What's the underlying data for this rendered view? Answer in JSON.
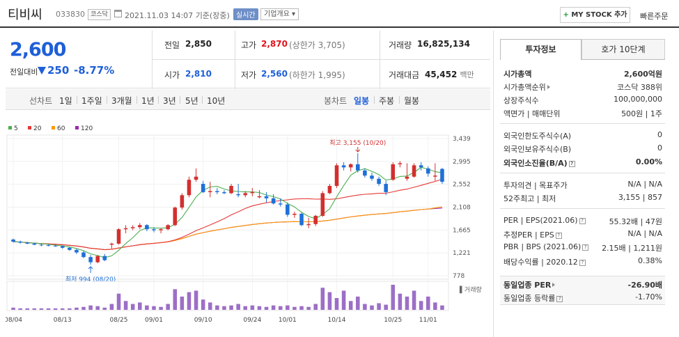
{
  "header": {
    "name": "티비씨",
    "code": "033830",
    "market": "코스닥",
    "datetime": "2021.11.03 14:07",
    "basis": "기준(장중)",
    "realtime": "실시간",
    "overview": "기업개요 ▾",
    "mystock": "MY STOCK 추가",
    "quick_order": "빠른주문"
  },
  "price": {
    "current": "2,600",
    "change_label": "전일대비",
    "change": "250",
    "change_pct": "-8.77%",
    "prev_label": "전일",
    "prev": "2,850",
    "high_label": "고가",
    "high": "2,870",
    "upper_limit": "(상한가 3,705)",
    "volume_label": "거래량",
    "volume": "16,825,134",
    "open_label": "시가",
    "open": "2,810",
    "low_label": "저가",
    "low": "2,560",
    "lower_limit": "(하한가 1,995)",
    "amount_label": "거래대금",
    "amount": "45,452",
    "amount_unit": "백만"
  },
  "periods": {
    "label": "선차트",
    "items": [
      "1일",
      "1주일",
      "3개월",
      "1년",
      "3년",
      "5년",
      "10년"
    ],
    "candle_label": "봉차트",
    "candle_items": [
      "일봉",
      "주봉",
      "월봉"
    ],
    "active_candle": "일봉"
  },
  "chart_data": {
    "type": "candlestick",
    "legend": [
      "5",
      "20",
      "60",
      "120"
    ],
    "legend_colors": [
      "#4caf50",
      "#e53935",
      "#ff9800",
      "#9c27b0"
    ],
    "y_ticks": [
      "3,439",
      "2,995",
      "2,552",
      "2,108",
      "1,665",
      "1,221",
      "778"
    ],
    "ylim": [
      778,
      3439
    ],
    "x_labels": [
      "08/04",
      "08/13",
      "08/25",
      "09/01",
      "09/10",
      "09/24",
      "10/01",
      "10/14",
      "10/25",
      "11/01"
    ],
    "x_label_index": [
      0,
      7,
      15,
      20,
      27,
      34,
      39,
      46,
      54,
      59
    ],
    "high_marker": "최고 3,155 (10/20)",
    "low_marker": "최저 994 (08/20)",
    "high_index": 49,
    "low_index": 11,
    "volume_label": "거래량",
    "up_color": "#d32f2f",
    "down_color": "#1e6fd8",
    "ohlc": [
      [
        1480,
        1500,
        1420,
        1440
      ],
      [
        1440,
        1460,
        1400,
        1420
      ],
      [
        1420,
        1440,
        1390,
        1400
      ],
      [
        1400,
        1420,
        1370,
        1380
      ],
      [
        1380,
        1400,
        1350,
        1370
      ],
      [
        1370,
        1390,
        1350,
        1360
      ],
      [
        1360,
        1380,
        1340,
        1350
      ],
      [
        1350,
        1370,
        1300,
        1320
      ],
      [
        1320,
        1340,
        1260,
        1280
      ],
      [
        1280,
        1300,
        1200,
        1230
      ],
      [
        1230,
        1260,
        1120,
        1140
      ],
      [
        1140,
        1180,
        994,
        1040
      ],
      [
        1040,
        1180,
        1020,
        1160
      ],
      [
        1160,
        1200,
        1060,
        1080
      ],
      [
        1380,
        1420,
        1300,
        1400
      ],
      [
        1400,
        1700,
        1380,
        1680
      ],
      [
        1680,
        1760,
        1600,
        1700
      ],
      [
        1700,
        1760,
        1660,
        1720
      ],
      [
        1720,
        1800,
        1680,
        1760
      ],
      [
        1760,
        1780,
        1640,
        1680
      ],
      [
        1680,
        1720,
        1620,
        1660
      ],
      [
        1660,
        1700,
        1600,
        1680
      ],
      [
        1680,
        1780,
        1660,
        1760
      ],
      [
        1760,
        2120,
        1740,
        2100
      ],
      [
        2100,
        2380,
        2060,
        2340
      ],
      [
        2340,
        2700,
        2300,
        2640
      ],
      [
        2640,
        2860,
        2600,
        2700
      ],
      [
        2560,
        2620,
        2380,
        2400
      ],
      [
        2400,
        2600,
        2300,
        2420
      ],
      [
        2420,
        2480,
        2360,
        2400
      ],
      [
        2400,
        2440,
        2360,
        2380
      ],
      [
        2380,
        2560,
        2360,
        2520
      ],
      [
        2360,
        2560,
        2300,
        2340
      ],
      [
        2340,
        2420,
        2300,
        2380
      ],
      [
        2380,
        2480,
        2320,
        2400
      ],
      [
        2300,
        2440,
        2280,
        2320
      ],
      [
        2320,
        2400,
        2200,
        2280
      ],
      [
        2280,
        2360,
        2160,
        2180
      ],
      [
        2180,
        2280,
        2120,
        2160
      ],
      [
        2160,
        2200,
        1920,
        1960
      ],
      [
        1960,
        2020,
        1900,
        1980
      ],
      [
        1980,
        2000,
        1740,
        1760
      ],
      [
        1760,
        1900,
        1700,
        1780
      ],
      [
        1780,
        1960,
        1740,
        1940
      ],
      [
        1940,
        2420,
        1920,
        2380
      ],
      [
        2380,
        2560,
        2360,
        2520
      ],
      [
        2520,
        2960,
        2480,
        2920
      ],
      [
        2920,
        2980,
        2820,
        2880
      ],
      [
        2880,
        2960,
        2800,
        2940
      ],
      [
        2940,
        3155,
        2780,
        2820
      ],
      [
        2820,
        2860,
        2680,
        2720
      ],
      [
        2720,
        2780,
        2620,
        2660
      ],
      [
        2660,
        2700,
        2520,
        2560
      ],
      [
        2560,
        2620,
        2340,
        2400
      ],
      [
        2640,
        2980,
        2620,
        2940
      ],
      [
        2940,
        3000,
        2880,
        2960
      ],
      [
        2660,
        2960,
        2620,
        2700
      ],
      [
        2700,
        2960,
        2680,
        2920
      ],
      [
        2920,
        2980,
        2820,
        2880
      ],
      [
        2860,
        2900,
        2700,
        2760
      ],
      [
        2700,
        2960,
        2620,
        2720
      ],
      [
        2850,
        2870,
        2560,
        2600
      ]
    ],
    "volume": [
      3,
      2,
      2,
      2,
      2,
      2,
      2,
      2,
      2,
      3,
      4,
      6,
      5,
      3,
      8,
      22,
      12,
      8,
      10,
      6,
      5,
      4,
      8,
      28,
      18,
      24,
      26,
      14,
      10,
      6,
      5,
      6,
      8,
      5,
      6,
      5,
      4,
      6,
      5,
      6,
      4,
      5,
      4,
      8,
      30,
      24,
      16,
      26,
      12,
      18,
      8,
      6,
      9,
      7,
      34,
      22,
      18,
      26,
      12,
      18,
      10,
      6
    ]
  },
  "right": {
    "tab_active": "투자정보",
    "tab_other": "호가 10단계",
    "rows": [
      {
        "label": "시가총액",
        "value": "2,600억원",
        "bold": true
      },
      {
        "label": "시가총액순위",
        "value": "코스닥 388위"
      },
      {
        "label": "상장주식수",
        "value": "100,000,000"
      },
      {
        "label": "액면가 | 매매단위",
        "value": "500원 | 1주"
      },
      {
        "label": "외국인한도주식수(A)",
        "value": "0"
      },
      {
        "label": "외국인보유주식수(B)",
        "value": "0"
      },
      {
        "label": "외국인소진율(B/A)",
        "value": "0.00%",
        "bold": true
      },
      {
        "label": "투자의견 | 목표주가",
        "value": "N/A | N/A"
      },
      {
        "label": "52주최고 | 최저",
        "value": "3,155 | 857"
      },
      {
        "label": "PER | EPS(2021.06)",
        "value": "55.32배 | 47원"
      },
      {
        "label": "추정PER | EPS",
        "value": "N/A | N/A"
      },
      {
        "label": "PBR | BPS (2021.06)",
        "value": "2.15배 | 1,211원"
      },
      {
        "label": "배당수익률 | 2020.12",
        "value": "0.38%"
      },
      {
        "label": "동일업종 PER",
        "value": "-26.90배",
        "bold": true
      },
      {
        "label": "동일업종 등락률",
        "value": "-1.70%",
        "blue": true
      }
    ]
  }
}
